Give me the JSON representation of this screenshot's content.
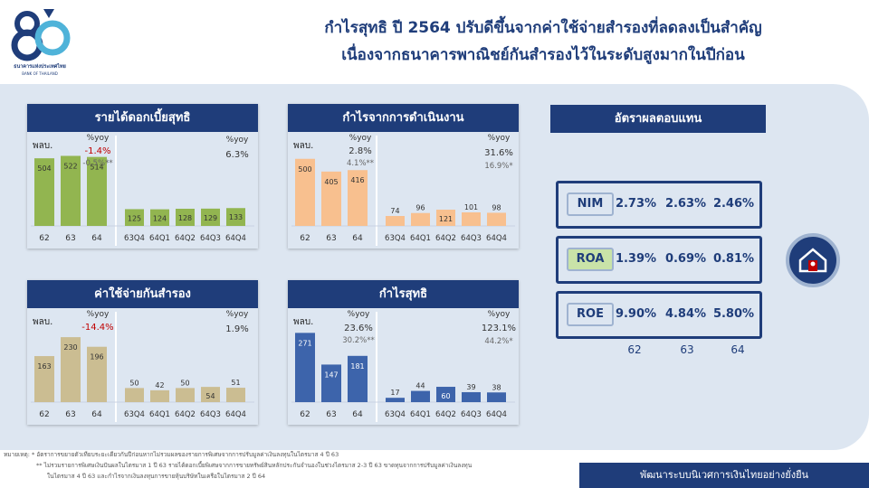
{
  "header": {
    "title_line1": "กำไรสุทธิ ปี 2564 ปรับดีขึ้นจากค่าใช้จ่ายสำรองที่ลดลงเป็นสำคัญ",
    "title_line2": "เนื่องจากธนาคารพาณิชย์กันสำรองไว้ในระดับสูงมากในปีก่อน",
    "logo_text_th": "ธนาคารแห่งประเทศไทย",
    "logo_text_en": "BANK OF THAILAND"
  },
  "colors": {
    "navy": "#1f3d7a",
    "green_bar": "#92b550",
    "orange_bar": "#f8c08f",
    "tan_bar": "#cbbd92",
    "blue_bar": "#3d64ab",
    "negative": "#c00000"
  },
  "panels": {
    "nii": {
      "title": "รายได้ดอกเบี้ยสุทธิ",
      "unit": "พลบ.",
      "annual_yoy_label": "%yoy",
      "annual_yoy": "-1.4%",
      "annual_yoy_sub": "-0.5%**",
      "quarter_yoy_label": "%yoy",
      "quarter_yoy": "6.3%"
    },
    "opprofit": {
      "title": "กำไรจากการดำเนินงาน",
      "unit": "พลบ.",
      "annual_yoy_label": "%yoy",
      "annual_yoy": "2.8%",
      "annual_yoy_sub": "4.1%**",
      "quarter_yoy_label": "%yoy",
      "quarter_yoy": "31.6%",
      "quarter_yoy_sub": "16.9%*"
    },
    "provision": {
      "title": "ค่าใช้จ่ายกันสำรอง",
      "unit": "พลบ.",
      "annual_yoy_label": "%yoy",
      "annual_yoy": "-14.4%",
      "quarter_yoy_label": "%yoy",
      "quarter_yoy": "1.9%"
    },
    "netprofit": {
      "title": "กำไรสุทธิ",
      "unit": "พลบ.",
      "annual_yoy_label": "%yoy",
      "annual_yoy": "23.6%",
      "annual_yoy_sub": "30.2%**",
      "quarter_yoy_label": "%yoy",
      "quarter_yoy": "123.1%",
      "quarter_yoy_sub": "44.2%*"
    }
  },
  "returns": {
    "title": "อัตราผลตอบแทน",
    "years": [
      "62",
      "63",
      "64"
    ],
    "ratios": [
      {
        "label": "NIM",
        "values": [
          "2.73%",
          "2.63%",
          "2.46%"
        ]
      },
      {
        "label": "ROA",
        "values": [
          "1.39%",
          "0.69%",
          "0.81%"
        ]
      },
      {
        "label": "ROE",
        "values": [
          "9.90%",
          "4.84%",
          "5.80%"
        ]
      }
    ]
  },
  "notes": {
    "line1": "หมายเหตุ: *  อัตราการขยายตัวเทียบระยะเดียวกันปีก่อนหากไม่รวมผลของรายการพิเศษจากการปรับมูลค่าเงินลงทุนในไตรมาส 4 ปี 63",
    "line2": "**  ไม่รวมรายการพิเศษเงินปันผลในไตรมาส 1 ปี 63 รายได้ดอกเบี้ยพิเศษจากการขายทรัพย์สินหลักประกันจำนองในช่วงไตรมาส 2-3 ปี 63 ขาดทุนจากการปรับมูลค่าเงินลงทุน",
    "line3": "ในไตรมาส 4 ปี 63 และกำไรจากเงินลงทุนการขายหุ้นบริษัทในเครือในไตรมาส 2 ปี 64"
  },
  "footer": {
    "text": "พัฒนาระบบนิเวศการเงินไทยอย่างยั่งยืน"
  },
  "chart_data": [
    {
      "type": "bar",
      "title": "รายได้ดอกเบี้ยสุทธิ",
      "ylabel": "พลบ.",
      "annual": {
        "categories": [
          "62",
          "63",
          "64"
        ],
        "values": [
          504,
          522,
          514
        ]
      },
      "quarterly": {
        "categories": [
          "63Q4",
          "64Q1",
          "64Q2",
          "64Q3",
          "64Q4"
        ],
        "values": [
          125,
          124,
          128,
          129,
          133
        ]
      },
      "color": "#92b550"
    },
    {
      "type": "bar",
      "title": "กำไรจากการดำเนินงาน",
      "ylabel": "พลบ.",
      "annual": {
        "categories": [
          "62",
          "63",
          "64"
        ],
        "values": [
          500,
          405,
          416
        ]
      },
      "quarterly": {
        "categories": [
          "63Q4",
          "64Q1",
          "64Q2",
          "64Q3",
          "64Q4"
        ],
        "values": [
          74,
          96,
          121,
          101,
          98
        ]
      },
      "color": "#f8c08f"
    },
    {
      "type": "bar",
      "title": "ค่าใช้จ่ายกันสำรอง",
      "ylabel": "พลบ.",
      "annual": {
        "categories": [
          "62",
          "63",
          "64"
        ],
        "values": [
          163,
          230,
          196
        ]
      },
      "quarterly": {
        "categories": [
          "63Q4",
          "64Q1",
          "64Q2",
          "64Q3",
          "64Q4"
        ],
        "values": [
          50,
          42,
          50,
          54,
          51
        ]
      },
      "color": "#cbbd92"
    },
    {
      "type": "bar",
      "title": "กำไรสุทธิ",
      "ylabel": "พลบ.",
      "annual": {
        "categories": [
          "62",
          "63",
          "64"
        ],
        "values": [
          271,
          147,
          181
        ]
      },
      "quarterly": {
        "categories": [
          "63Q4",
          "64Q1",
          "64Q2",
          "64Q3",
          "64Q4"
        ],
        "values": [
          17,
          44,
          60,
          39,
          38
        ]
      },
      "color": "#3d64ab"
    }
  ]
}
